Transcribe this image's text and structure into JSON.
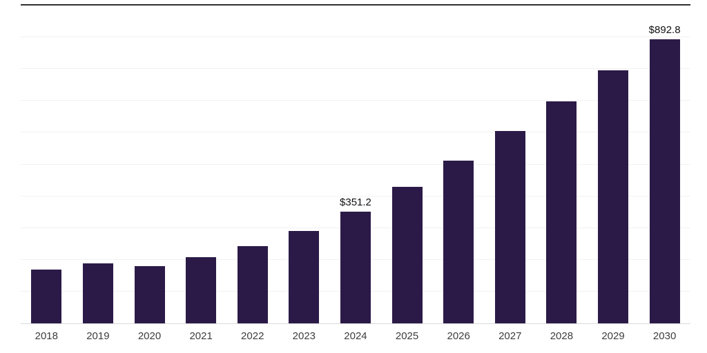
{
  "chart_data": {
    "type": "bar",
    "title": "",
    "xlabel": "",
    "ylabel": "",
    "categories": [
      "2018",
      "2019",
      "2020",
      "2021",
      "2022",
      "2023",
      "2024",
      "2025",
      "2026",
      "2027",
      "2028",
      "2029",
      "2030"
    ],
    "values": [
      170,
      189,
      179,
      208,
      244,
      291,
      351.2,
      429,
      512,
      606,
      699,
      797,
      892.8
    ],
    "data_labels": {
      "2024": "$351.2",
      "2030": "$892.8"
    },
    "ylim": [
      0,
      1000
    ],
    "gridline_step": 100,
    "grid": true,
    "legend": false,
    "bar_color": "#2b1a47",
    "gridline_color": "#f1f1f1",
    "top_line_color": "#2f2f2f",
    "axis_line_color": "#d9d9d9",
    "x_label_color": "#3d3d3d",
    "data_label_color": "#111111"
  }
}
